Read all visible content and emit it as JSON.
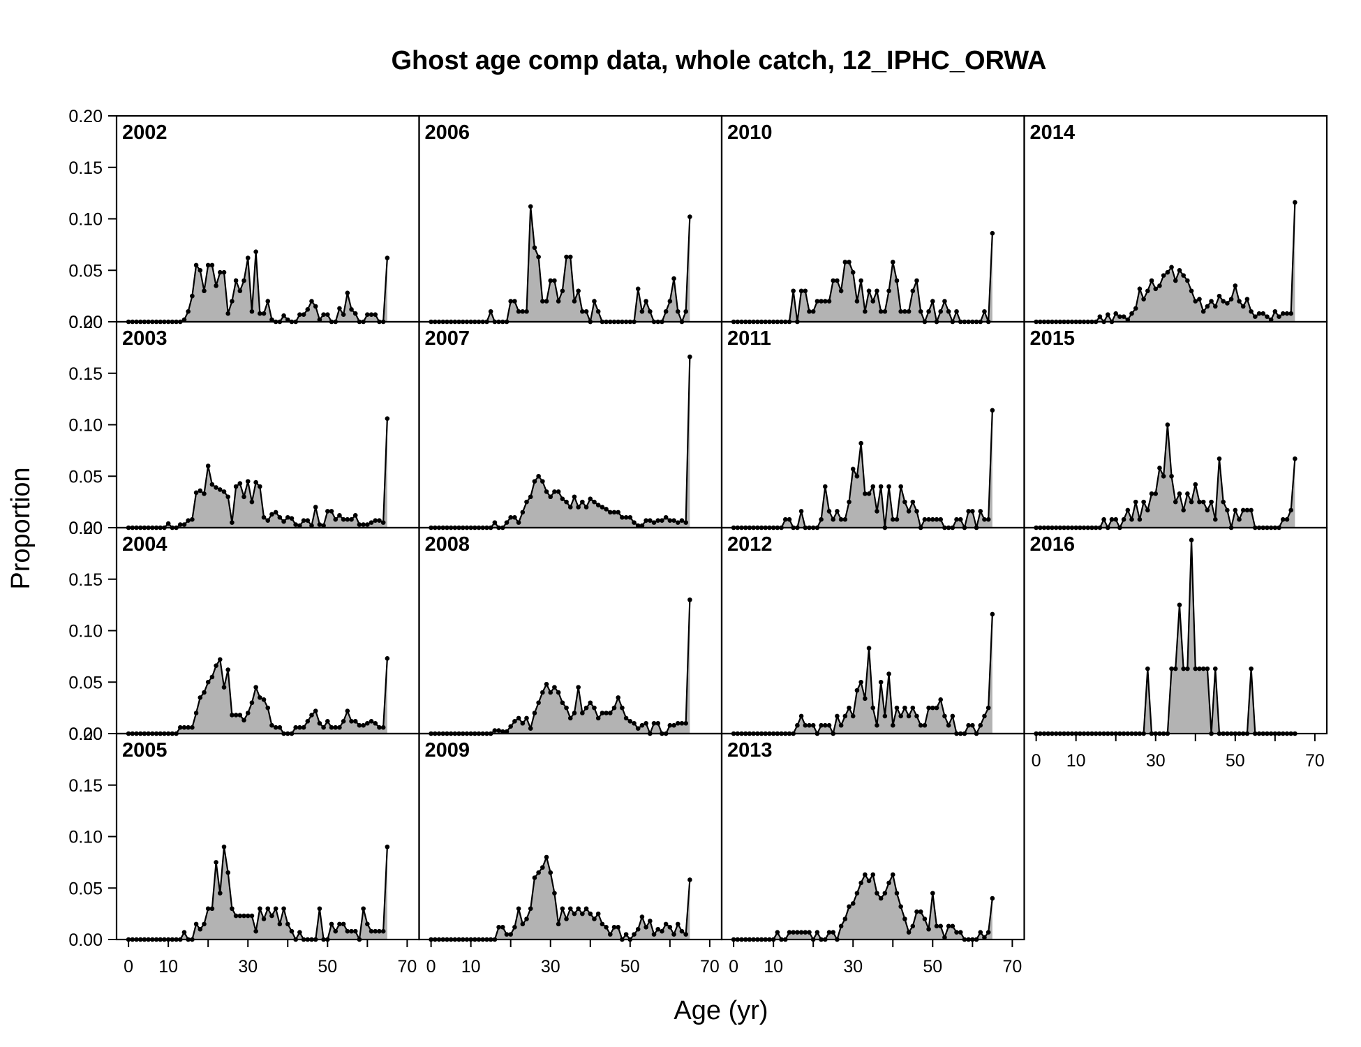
{
  "chart_data": {
    "type": "area",
    "title": "Ghost age comp data, whole catch, 12_IPHC_ORWA",
    "xlabel": "Age (yr)",
    "ylabel": "Proportion",
    "xlim": [
      -3,
      73
    ],
    "ylim": [
      0,
      0.2
    ],
    "x_ticks": [
      0,
      10,
      30,
      50,
      70
    ],
    "y_ticks": [
      0.0,
      0.05,
      0.1,
      0.15,
      0.2
    ],
    "y_tick_labels": [
      "0.00",
      "0.05",
      "0.10",
      "0.15",
      "0.20"
    ],
    "ages": [
      0,
      1,
      2,
      3,
      4,
      5,
      6,
      7,
      8,
      9,
      10,
      11,
      12,
      13,
      14,
      15,
      16,
      17,
      18,
      19,
      20,
      21,
      22,
      23,
      24,
      25,
      26,
      27,
      28,
      29,
      30,
      31,
      32,
      33,
      34,
      35,
      36,
      37,
      38,
      39,
      40,
      41,
      42,
      43,
      44,
      45,
      46,
      47,
      48,
      49,
      50,
      51,
      52,
      53,
      54,
      55,
      56,
      57,
      58,
      59,
      60,
      61,
      62,
      63,
      64,
      65
    ],
    "fill_color": "#b3b3b3",
    "line_color": "#000000",
    "panels": [
      {
        "year": "2002",
        "values": [
          0,
          0,
          0,
          0,
          0,
          0,
          0,
          0,
          0,
          0,
          0,
          0,
          0,
          0,
          0.002,
          0.01,
          0.025,
          0.055,
          0.05,
          0.03,
          0.055,
          0.055,
          0.035,
          0.048,
          0.048,
          0.008,
          0.02,
          0.04,
          0.03,
          0.04,
          0.062,
          0.01,
          0.068,
          0.008,
          0.008,
          0.02,
          0.002,
          0,
          0,
          0.006,
          0.002,
          0,
          0,
          0.007,
          0.007,
          0.012,
          0.02,
          0.015,
          0.002,
          0.007,
          0.007,
          0,
          0,
          0.013,
          0.007,
          0.028,
          0.012,
          0.008,
          0,
          0,
          0.007,
          0.007,
          0.007,
          0,
          0,
          0.062
        ]
      },
      {
        "year": "2003",
        "values": [
          0,
          0,
          0,
          0,
          0,
          0,
          0,
          0,
          0,
          0,
          0.004,
          0,
          0,
          0.003,
          0.003,
          0.007,
          0.008,
          0.034,
          0.036,
          0.033,
          0.06,
          0.042,
          0.039,
          0.037,
          0.035,
          0.03,
          0.005,
          0.04,
          0.043,
          0.03,
          0.045,
          0.025,
          0.044,
          0.04,
          0.01,
          0.007,
          0.013,
          0.015,
          0.01,
          0.006,
          0.01,
          0.009,
          0.003,
          0.002,
          0.007,
          0.007,
          0.002,
          0.02,
          0.003,
          0.002,
          0.016,
          0.016,
          0.008,
          0.012,
          0.008,
          0.008,
          0.008,
          0.012,
          0.003,
          0.003,
          0.003,
          0.005,
          0.007,
          0.007,
          0.005,
          0.106
        ]
      },
      {
        "year": "2004",
        "values": [
          0,
          0,
          0,
          0,
          0,
          0,
          0,
          0,
          0,
          0,
          0,
          0,
          0,
          0.006,
          0.006,
          0.006,
          0.006,
          0.02,
          0.035,
          0.04,
          0.05,
          0.055,
          0.066,
          0.072,
          0.045,
          0.062,
          0.018,
          0.018,
          0.018,
          0.013,
          0.02,
          0.03,
          0.045,
          0.035,
          0.033,
          0.025,
          0.008,
          0.006,
          0.006,
          0,
          0,
          0,
          0.006,
          0.006,
          0.006,
          0.012,
          0.018,
          0.022,
          0.01,
          0.006,
          0.012,
          0.006,
          0.006,
          0.006,
          0.012,
          0.022,
          0.012,
          0.012,
          0.008,
          0.008,
          0.01,
          0.012,
          0.01,
          0.006,
          0.006,
          0.073
        ]
      },
      {
        "year": "2005",
        "values": [
          0,
          0,
          0,
          0,
          0,
          0,
          0,
          0,
          0,
          0,
          0,
          0,
          0,
          0,
          0.007,
          0,
          0,
          0.015,
          0.01,
          0.015,
          0.03,
          0.03,
          0.075,
          0.045,
          0.09,
          0.065,
          0.03,
          0.023,
          0.023,
          0.023,
          0.023,
          0.023,
          0.008,
          0.03,
          0.02,
          0.03,
          0.023,
          0.03,
          0.015,
          0.03,
          0.015,
          0.008,
          0,
          0.007,
          0,
          0,
          0,
          0,
          0.03,
          0,
          0,
          0.015,
          0.008,
          0.015,
          0.015,
          0.008,
          0.008,
          0.008,
          0,
          0.03,
          0.015,
          0.008,
          0.008,
          0.008,
          0.008,
          0.09
        ]
      },
      {
        "year": "2006",
        "values": [
          0,
          0,
          0,
          0,
          0,
          0,
          0,
          0,
          0,
          0,
          0,
          0,
          0,
          0,
          0,
          0.01,
          0,
          0,
          0,
          0,
          0.02,
          0.02,
          0.01,
          0.01,
          0.01,
          0.112,
          0.072,
          0.063,
          0.02,
          0.02,
          0.04,
          0.04,
          0.02,
          0.03,
          0.063,
          0.063,
          0.02,
          0.03,
          0.01,
          0.01,
          0,
          0.02,
          0.01,
          0,
          0,
          0,
          0,
          0,
          0,
          0,
          0,
          0,
          0.032,
          0.01,
          0.02,
          0.01,
          0,
          0,
          0,
          0.01,
          0.02,
          0.042,
          0.01,
          0,
          0.01,
          0.102
        ]
      },
      {
        "year": "2007",
        "values": [
          0,
          0,
          0,
          0,
          0,
          0,
          0,
          0,
          0,
          0,
          0,
          0,
          0,
          0,
          0,
          0,
          0.005,
          0,
          0,
          0.005,
          0.01,
          0.01,
          0.005,
          0.015,
          0.025,
          0.03,
          0.045,
          0.05,
          0.045,
          0.035,
          0.03,
          0.035,
          0.035,
          0.028,
          0.025,
          0.02,
          0.03,
          0.02,
          0.025,
          0.02,
          0.028,
          0.025,
          0.022,
          0.02,
          0.018,
          0.015,
          0.015,
          0.015,
          0.01,
          0.01,
          0.01,
          0.005,
          0.002,
          0.002,
          0.007,
          0.007,
          0.005,
          0.007,
          0.007,
          0.01,
          0.007,
          0.007,
          0.005,
          0.007,
          0.005,
          0.166
        ]
      },
      {
        "year": "2008",
        "values": [
          0,
          0,
          0,
          0,
          0,
          0,
          0,
          0,
          0,
          0,
          0,
          0,
          0,
          0,
          0,
          0,
          0.003,
          0.003,
          0.002,
          0.002,
          0.007,
          0.012,
          0.015,
          0.01,
          0.015,
          0.005,
          0.02,
          0.03,
          0.04,
          0.048,
          0.04,
          0.045,
          0.04,
          0.03,
          0.025,
          0.015,
          0.02,
          0.045,
          0.02,
          0.025,
          0.03,
          0.025,
          0.015,
          0.02,
          0.02,
          0.02,
          0.025,
          0.035,
          0.025,
          0.015,
          0.012,
          0.01,
          0.005,
          0.008,
          0.01,
          0,
          0.01,
          0.01,
          0,
          0,
          0.008,
          0.008,
          0.01,
          0.01,
          0.01,
          0.13
        ]
      },
      {
        "year": "2009",
        "values": [
          0,
          0,
          0,
          0,
          0,
          0,
          0,
          0,
          0,
          0,
          0,
          0,
          0,
          0,
          0,
          0,
          0,
          0.012,
          0.012,
          0.005,
          0.005,
          0.012,
          0.03,
          0.015,
          0.02,
          0.03,
          0.06,
          0.065,
          0.07,
          0.08,
          0.065,
          0.045,
          0.015,
          0.03,
          0.02,
          0.03,
          0.025,
          0.03,
          0.025,
          0.03,
          0.025,
          0.02,
          0.025,
          0.015,
          0.012,
          0.005,
          0.012,
          0.012,
          0,
          0.005,
          0,
          0.005,
          0.01,
          0.022,
          0.012,
          0.018,
          0.005,
          0.01,
          0.008,
          0.015,
          0.012,
          0.005,
          0.015,
          0.008,
          0.005,
          0.058
        ]
      },
      {
        "year": "2010",
        "values": [
          0,
          0,
          0,
          0,
          0,
          0,
          0,
          0,
          0,
          0,
          0,
          0,
          0,
          0,
          0,
          0.03,
          0,
          0.03,
          0.03,
          0.01,
          0.01,
          0.02,
          0.02,
          0.02,
          0.02,
          0.04,
          0.04,
          0.03,
          0.058,
          0.058,
          0.048,
          0.02,
          0.04,
          0.01,
          0.03,
          0.02,
          0.03,
          0.01,
          0.01,
          0.03,
          0.058,
          0.04,
          0.01,
          0.01,
          0.01,
          0.03,
          0.04,
          0.01,
          0,
          0.01,
          0.02,
          0,
          0.01,
          0.02,
          0.01,
          0,
          0.01,
          0,
          0,
          0,
          0,
          0,
          0,
          0.01,
          0,
          0.086
        ]
      },
      {
        "year": "2011",
        "values": [
          0,
          0,
          0,
          0,
          0,
          0,
          0,
          0,
          0,
          0,
          0,
          0,
          0,
          0.008,
          0.008,
          0,
          0,
          0.016,
          0,
          0,
          0,
          0,
          0.008,
          0.04,
          0.016,
          0.008,
          0.016,
          0.008,
          0.008,
          0.025,
          0.057,
          0.05,
          0.082,
          0.033,
          0.033,
          0.04,
          0.016,
          0.04,
          0,
          0.04,
          0.008,
          0.008,
          0.04,
          0.025,
          0.016,
          0.025,
          0.016,
          0,
          0.008,
          0.008,
          0.008,
          0.008,
          0.008,
          0,
          0,
          0,
          0.008,
          0.008,
          0,
          0.016,
          0.016,
          0,
          0.016,
          0.008,
          0.008,
          0.114
        ]
      },
      {
        "year": "2012",
        "values": [
          0,
          0,
          0,
          0,
          0,
          0,
          0,
          0,
          0,
          0,
          0,
          0,
          0,
          0,
          0,
          0,
          0.008,
          0.017,
          0.008,
          0.008,
          0.008,
          0,
          0.008,
          0.008,
          0.008,
          0,
          0.017,
          0.008,
          0.017,
          0.025,
          0.017,
          0.042,
          0.05,
          0.034,
          0.083,
          0.025,
          0.008,
          0.05,
          0.017,
          0.058,
          0.008,
          0.025,
          0.017,
          0.025,
          0.017,
          0.025,
          0.017,
          0.008,
          0.008,
          0.025,
          0.025,
          0.025,
          0.033,
          0.017,
          0.008,
          0.017,
          0,
          0,
          0,
          0.008,
          0.008,
          0,
          0.008,
          0.017,
          0.025,
          0.116
        ]
      },
      {
        "year": "2013",
        "values": [
          0,
          0,
          0,
          0,
          0,
          0,
          0,
          0,
          0,
          0,
          0,
          0.007,
          0,
          0,
          0.007,
          0.007,
          0.007,
          0.007,
          0.007,
          0.007,
          0,
          0.007,
          0,
          0,
          0.007,
          0.007,
          0,
          0.013,
          0.02,
          0.032,
          0.035,
          0.045,
          0.055,
          0.063,
          0.057,
          0.063,
          0.045,
          0.04,
          0.045,
          0.055,
          0.063,
          0.045,
          0.032,
          0.02,
          0.007,
          0.013,
          0.027,
          0.027,
          0.02,
          0.01,
          0.045,
          0.013,
          0.013,
          0.002,
          0.013,
          0.013,
          0.007,
          0.007,
          0,
          0,
          0,
          0,
          0.007,
          0.002,
          0.007,
          0.04
        ]
      },
      {
        "year": "2014",
        "values": [
          0,
          0,
          0,
          0,
          0,
          0,
          0,
          0,
          0,
          0,
          0,
          0,
          0,
          0,
          0,
          0,
          0.005,
          0,
          0.007,
          0,
          0.008,
          0.005,
          0.005,
          0.002,
          0.008,
          0.013,
          0.032,
          0.022,
          0.03,
          0.04,
          0.032,
          0.035,
          0.045,
          0.048,
          0.053,
          0.04,
          0.05,
          0.045,
          0.04,
          0.03,
          0.02,
          0.022,
          0.01,
          0.015,
          0.02,
          0.015,
          0.025,
          0.02,
          0.018,
          0.022,
          0.035,
          0.02,
          0.015,
          0.022,
          0.01,
          0.005,
          0.008,
          0.008,
          0.005,
          0.002,
          0.01,
          0.005,
          0.008,
          0.008,
          0.008,
          0.116
        ]
      },
      {
        "year": "2015",
        "values": [
          0,
          0,
          0,
          0,
          0,
          0,
          0,
          0,
          0,
          0,
          0,
          0,
          0,
          0,
          0,
          0,
          0,
          0.008,
          0,
          0.008,
          0.008,
          0,
          0.008,
          0.017,
          0.008,
          0.025,
          0.008,
          0.025,
          0.017,
          0.033,
          0.033,
          0.058,
          0.05,
          0.1,
          0.05,
          0.025,
          0.033,
          0.017,
          0.033,
          0.025,
          0.042,
          0.025,
          0.025,
          0.017,
          0.025,
          0.008,
          0.067,
          0.025,
          0.017,
          0,
          0.017,
          0.008,
          0.017,
          0.017,
          0.017,
          0,
          0,
          0,
          0,
          0,
          0,
          0,
          0.008,
          0.008,
          0.017,
          0.067
        ]
      },
      {
        "year": "2016",
        "values": [
          0,
          0,
          0,
          0,
          0,
          0,
          0,
          0,
          0,
          0,
          0,
          0,
          0,
          0,
          0,
          0,
          0,
          0,
          0,
          0,
          0,
          0,
          0,
          0,
          0,
          0,
          0,
          0,
          0.063,
          0,
          0,
          0,
          0,
          0,
          0.063,
          0.063,
          0.125,
          0.063,
          0.063,
          0.188,
          0.063,
          0.063,
          0.063,
          0.063,
          0,
          0.063,
          0,
          0,
          0,
          0,
          0,
          0,
          0,
          0,
          0.063,
          0,
          0,
          0,
          0,
          0,
          0,
          0,
          0,
          0,
          0,
          0
        ]
      }
    ]
  }
}
